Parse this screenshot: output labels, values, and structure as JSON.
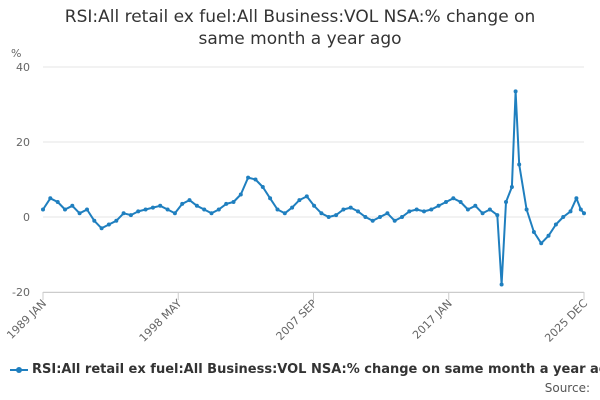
{
  "chart_data": {
    "type": "line",
    "title_line1": "RSI:All retail ex fuel:All Business:VOL NSA:% change on",
    "title_line2": "same month a year ago",
    "ylabel": "%",
    "ylim": [
      -20,
      40
    ],
    "yticks": [
      "40",
      "20",
      "0",
      "-20"
    ],
    "xticks": [
      "1989 JAN",
      "1998 MAY",
      "2007 SEP",
      "2017 JAN",
      "2025 DEC"
    ],
    "grid": true,
    "legend_position": "bottom-left",
    "color": "#1f7fbf",
    "series": [
      {
        "name": "RSI:All retail ex fuel:All Business:VOL NSA:% change on same month a year ago",
        "points": [
          [
            1989.0,
            2.0
          ],
          [
            1989.5,
            5.0
          ],
          [
            1990.0,
            4.0
          ],
          [
            1990.5,
            2.0
          ],
          [
            1991.0,
            3.0
          ],
          [
            1991.5,
            1.0
          ],
          [
            1992.0,
            2.0
          ],
          [
            1992.5,
            -1.0
          ],
          [
            1993.0,
            -3.0
          ],
          [
            1993.5,
            -2.0
          ],
          [
            1994.0,
            -1.0
          ],
          [
            1994.5,
            1.0
          ],
          [
            1995.0,
            0.5
          ],
          [
            1995.5,
            1.5
          ],
          [
            1996.0,
            2.0
          ],
          [
            1996.5,
            2.5
          ],
          [
            1997.0,
            3.0
          ],
          [
            1997.5,
            2.0
          ],
          [
            1998.0,
            1.0
          ],
          [
            1998.5,
            3.5
          ],
          [
            1999.0,
            4.5
          ],
          [
            1999.5,
            3.0
          ],
          [
            2000.0,
            2.0
          ],
          [
            2000.5,
            1.0
          ],
          [
            2001.0,
            2.0
          ],
          [
            2001.5,
            3.5
          ],
          [
            2002.0,
            4.0
          ],
          [
            2002.5,
            6.0
          ],
          [
            2003.0,
            10.5
          ],
          [
            2003.5,
            10.0
          ],
          [
            2004.0,
            8.0
          ],
          [
            2004.5,
            5.0
          ],
          [
            2005.0,
            2.0
          ],
          [
            2005.5,
            1.0
          ],
          [
            2006.0,
            2.5
          ],
          [
            2006.5,
            4.5
          ],
          [
            2007.0,
            5.5
          ],
          [
            2007.5,
            3.0
          ],
          [
            2008.0,
            1.0
          ],
          [
            2008.5,
            0.0
          ],
          [
            2009.0,
            0.5
          ],
          [
            2009.5,
            2.0
          ],
          [
            2010.0,
            2.5
          ],
          [
            2010.5,
            1.5
          ],
          [
            2011.0,
            0.0
          ],
          [
            2011.5,
            -1.0
          ],
          [
            2012.0,
            0.0
          ],
          [
            2012.5,
            1.0
          ],
          [
            2013.0,
            -1.0
          ],
          [
            2013.5,
            0.0
          ],
          [
            2014.0,
            1.5
          ],
          [
            2014.5,
            2.0
          ],
          [
            2015.0,
            1.5
          ],
          [
            2015.5,
            2.0
          ],
          [
            2016.0,
            3.0
          ],
          [
            2016.5,
            4.0
          ],
          [
            2017.0,
            5.0
          ],
          [
            2017.5,
            4.0
          ],
          [
            2018.0,
            2.0
          ],
          [
            2018.5,
            3.0
          ],
          [
            2019.0,
            1.0
          ],
          [
            2019.5,
            2.0
          ],
          [
            2020.0,
            0.5
          ],
          [
            2020.3,
            -18.0
          ],
          [
            2020.6,
            4.0
          ],
          [
            2021.0,
            8.0
          ],
          [
            2021.25,
            33.5
          ],
          [
            2021.5,
            14.0
          ],
          [
            2022.0,
            2.0
          ],
          [
            2022.5,
            -4.0
          ],
          [
            2023.0,
            -7.0
          ],
          [
            2023.5,
            -5.0
          ],
          [
            2024.0,
            -2.0
          ],
          [
            2024.5,
            0.0
          ],
          [
            2025.0,
            1.5
          ],
          [
            2025.4,
            5.0
          ],
          [
            2025.7,
            2.0
          ],
          [
            2025.92,
            1.0
          ]
        ]
      }
    ],
    "source_label": "Source:"
  }
}
